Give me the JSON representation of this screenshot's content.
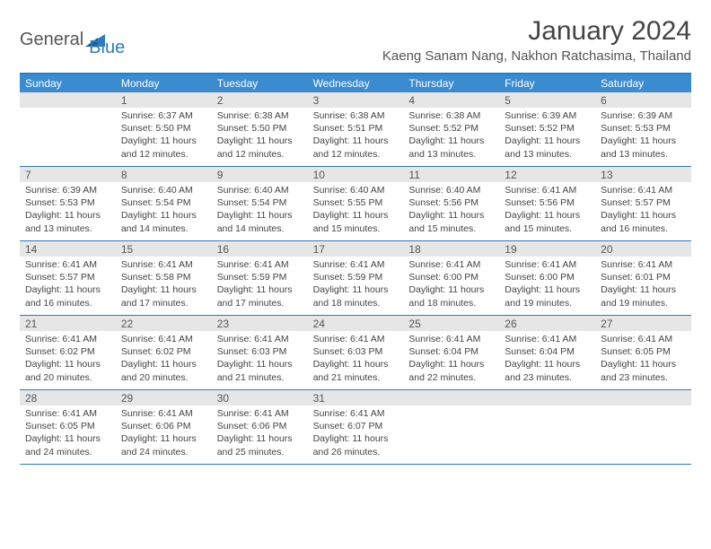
{
  "logo": {
    "part1": "General",
    "part2": "Blue"
  },
  "title": "January 2024",
  "location": "Kaeng Sanam Nang, Nakhon Ratchasima, Thailand",
  "colors": {
    "header_bar": "#3a8bd0",
    "accent_line": "#2f7bbf",
    "daynum_bg": "#e6e6e6",
    "text": "#444444"
  },
  "day_names": [
    "Sunday",
    "Monday",
    "Tuesday",
    "Wednesday",
    "Thursday",
    "Friday",
    "Saturday"
  ],
  "weeks": [
    [
      {
        "n": "",
        "sr": "",
        "ss": "",
        "dl": ""
      },
      {
        "n": "1",
        "sr": "Sunrise: 6:37 AM",
        "ss": "Sunset: 5:50 PM",
        "dl": "Daylight: 11 hours and 12 minutes."
      },
      {
        "n": "2",
        "sr": "Sunrise: 6:38 AM",
        "ss": "Sunset: 5:50 PM",
        "dl": "Daylight: 11 hours and 12 minutes."
      },
      {
        "n": "3",
        "sr": "Sunrise: 6:38 AM",
        "ss": "Sunset: 5:51 PM",
        "dl": "Daylight: 11 hours and 12 minutes."
      },
      {
        "n": "4",
        "sr": "Sunrise: 6:38 AM",
        "ss": "Sunset: 5:52 PM",
        "dl": "Daylight: 11 hours and 13 minutes."
      },
      {
        "n": "5",
        "sr": "Sunrise: 6:39 AM",
        "ss": "Sunset: 5:52 PM",
        "dl": "Daylight: 11 hours and 13 minutes."
      },
      {
        "n": "6",
        "sr": "Sunrise: 6:39 AM",
        "ss": "Sunset: 5:53 PM",
        "dl": "Daylight: 11 hours and 13 minutes."
      }
    ],
    [
      {
        "n": "7",
        "sr": "Sunrise: 6:39 AM",
        "ss": "Sunset: 5:53 PM",
        "dl": "Daylight: 11 hours and 13 minutes."
      },
      {
        "n": "8",
        "sr": "Sunrise: 6:40 AM",
        "ss": "Sunset: 5:54 PM",
        "dl": "Daylight: 11 hours and 14 minutes."
      },
      {
        "n": "9",
        "sr": "Sunrise: 6:40 AM",
        "ss": "Sunset: 5:54 PM",
        "dl": "Daylight: 11 hours and 14 minutes."
      },
      {
        "n": "10",
        "sr": "Sunrise: 6:40 AM",
        "ss": "Sunset: 5:55 PM",
        "dl": "Daylight: 11 hours and 15 minutes."
      },
      {
        "n": "11",
        "sr": "Sunrise: 6:40 AM",
        "ss": "Sunset: 5:56 PM",
        "dl": "Daylight: 11 hours and 15 minutes."
      },
      {
        "n": "12",
        "sr": "Sunrise: 6:41 AM",
        "ss": "Sunset: 5:56 PM",
        "dl": "Daylight: 11 hours and 15 minutes."
      },
      {
        "n": "13",
        "sr": "Sunrise: 6:41 AM",
        "ss": "Sunset: 5:57 PM",
        "dl": "Daylight: 11 hours and 16 minutes."
      }
    ],
    [
      {
        "n": "14",
        "sr": "Sunrise: 6:41 AM",
        "ss": "Sunset: 5:57 PM",
        "dl": "Daylight: 11 hours and 16 minutes."
      },
      {
        "n": "15",
        "sr": "Sunrise: 6:41 AM",
        "ss": "Sunset: 5:58 PM",
        "dl": "Daylight: 11 hours and 17 minutes."
      },
      {
        "n": "16",
        "sr": "Sunrise: 6:41 AM",
        "ss": "Sunset: 5:59 PM",
        "dl": "Daylight: 11 hours and 17 minutes."
      },
      {
        "n": "17",
        "sr": "Sunrise: 6:41 AM",
        "ss": "Sunset: 5:59 PM",
        "dl": "Daylight: 11 hours and 18 minutes."
      },
      {
        "n": "18",
        "sr": "Sunrise: 6:41 AM",
        "ss": "Sunset: 6:00 PM",
        "dl": "Daylight: 11 hours and 18 minutes."
      },
      {
        "n": "19",
        "sr": "Sunrise: 6:41 AM",
        "ss": "Sunset: 6:00 PM",
        "dl": "Daylight: 11 hours and 19 minutes."
      },
      {
        "n": "20",
        "sr": "Sunrise: 6:41 AM",
        "ss": "Sunset: 6:01 PM",
        "dl": "Daylight: 11 hours and 19 minutes."
      }
    ],
    [
      {
        "n": "21",
        "sr": "Sunrise: 6:41 AM",
        "ss": "Sunset: 6:02 PM",
        "dl": "Daylight: 11 hours and 20 minutes."
      },
      {
        "n": "22",
        "sr": "Sunrise: 6:41 AM",
        "ss": "Sunset: 6:02 PM",
        "dl": "Daylight: 11 hours and 20 minutes."
      },
      {
        "n": "23",
        "sr": "Sunrise: 6:41 AM",
        "ss": "Sunset: 6:03 PM",
        "dl": "Daylight: 11 hours and 21 minutes."
      },
      {
        "n": "24",
        "sr": "Sunrise: 6:41 AM",
        "ss": "Sunset: 6:03 PM",
        "dl": "Daylight: 11 hours and 21 minutes."
      },
      {
        "n": "25",
        "sr": "Sunrise: 6:41 AM",
        "ss": "Sunset: 6:04 PM",
        "dl": "Daylight: 11 hours and 22 minutes."
      },
      {
        "n": "26",
        "sr": "Sunrise: 6:41 AM",
        "ss": "Sunset: 6:04 PM",
        "dl": "Daylight: 11 hours and 23 minutes."
      },
      {
        "n": "27",
        "sr": "Sunrise: 6:41 AM",
        "ss": "Sunset: 6:05 PM",
        "dl": "Daylight: 11 hours and 23 minutes."
      }
    ],
    [
      {
        "n": "28",
        "sr": "Sunrise: 6:41 AM",
        "ss": "Sunset: 6:05 PM",
        "dl": "Daylight: 11 hours and 24 minutes."
      },
      {
        "n": "29",
        "sr": "Sunrise: 6:41 AM",
        "ss": "Sunset: 6:06 PM",
        "dl": "Daylight: 11 hours and 24 minutes."
      },
      {
        "n": "30",
        "sr": "Sunrise: 6:41 AM",
        "ss": "Sunset: 6:06 PM",
        "dl": "Daylight: 11 hours and 25 minutes."
      },
      {
        "n": "31",
        "sr": "Sunrise: 6:41 AM",
        "ss": "Sunset: 6:07 PM",
        "dl": "Daylight: 11 hours and 26 minutes."
      },
      {
        "n": "",
        "sr": "",
        "ss": "",
        "dl": ""
      },
      {
        "n": "",
        "sr": "",
        "ss": "",
        "dl": ""
      },
      {
        "n": "",
        "sr": "",
        "ss": "",
        "dl": ""
      }
    ]
  ]
}
